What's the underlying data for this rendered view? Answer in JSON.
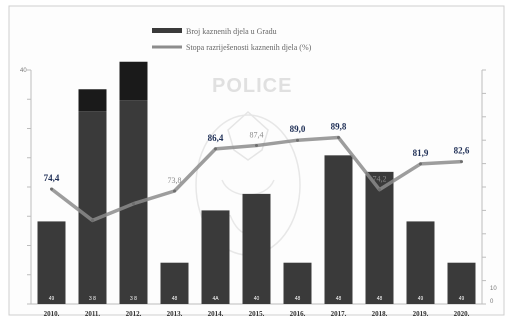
{
  "chart_data": {
    "type": "bar+line",
    "categories": [
      "2010.",
      "2011.",
      "2012.",
      "2013.",
      "2014.",
      "2015.",
      "2016.",
      "2017.",
      "2018.",
      "2019.",
      "2020."
    ],
    "bars": {
      "legend_label": "Broj kaznenih djela u Gradu",
      "color": "#3a3a3a",
      "values": [
        30,
        70,
        74,
        15,
        34,
        40,
        15,
        54,
        48,
        30,
        15
      ],
      "dark_caps": [
        0,
        8,
        14,
        0,
        0,
        0,
        0,
        0,
        0,
        0,
        0
      ],
      "inner_labels": [
        "49",
        "3 8",
        "3 8",
        "48",
        "4A",
        "40",
        "48",
        "48",
        "48",
        "49",
        "49"
      ]
    },
    "line": {
      "legend_label": "Stopa razriješenosti kaznenih djela (%)",
      "color": "#4a4a4a",
      "values": [
        74.4,
        65.0,
        70.0,
        73.8,
        86.4,
        87.4,
        89.0,
        89.8,
        74.2,
        81.9,
        82.6
      ],
      "labels": [
        "74,4",
        "",
        "",
        "73,8",
        "86,4",
        "87,4",
        "89,0",
        "89,8",
        "74,2",
        "81,9",
        "82,6"
      ]
    },
    "left_axis": {
      "ylim": [
        0,
        85
      ],
      "ticks": [
        "40",
        "",
        "",
        "",
        "",
        "",
        "",
        "",
        ""
      ]
    },
    "right_axis": {
      "ylim": [
        40,
        110
      ],
      "ticks": [
        "",
        "",
        "",
        "",
        "",
        "",
        "",
        "",
        "",
        "",
        "10",
        "0"
      ]
    },
    "watermark": "POLICE",
    "grid": false
  }
}
